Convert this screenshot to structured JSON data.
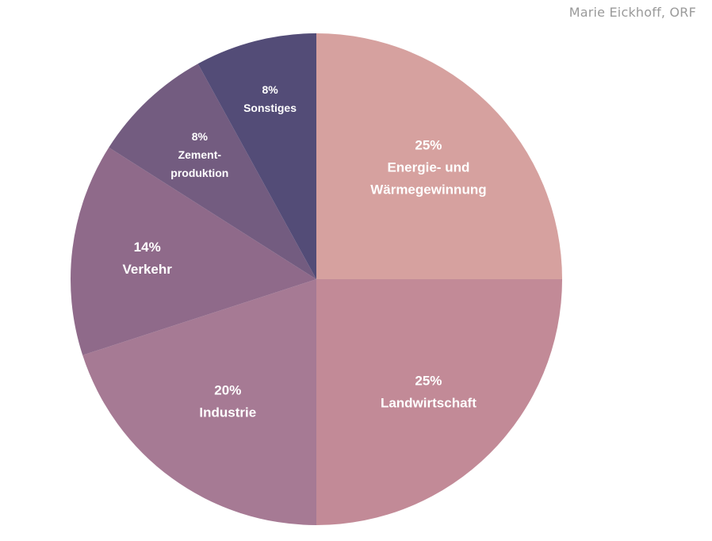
{
  "credit": "Marie Eickhoff, ORF",
  "chart_data": {
    "type": "pie",
    "title": "",
    "start_angle_deg": 0,
    "direction": "clockwise",
    "slices": [
      {
        "value": 25,
        "percent_label": "25%",
        "label_lines": [
          "Energie- und",
          "Wärmegewinnung"
        ],
        "color": "#d6a19f"
      },
      {
        "value": 25,
        "percent_label": "25%",
        "label_lines": [
          "Landwirtschaft"
        ],
        "color": "#c28a97"
      },
      {
        "value": 20,
        "percent_label": "20%",
        "label_lines": [
          "Industrie"
        ],
        "color": "#a67a94"
      },
      {
        "value": 14,
        "percent_label": "14%",
        "label_lines": [
          "Verkehr"
        ],
        "color": "#8f6a8a"
      },
      {
        "value": 8,
        "percent_label": "8%",
        "label_lines": [
          "Zement-",
          "produktion"
        ],
        "color": "#735c80"
      },
      {
        "value": 8,
        "percent_label": "8%",
        "label_lines": [
          "Sonstiges"
        ],
        "color": "#534c77"
      }
    ]
  }
}
